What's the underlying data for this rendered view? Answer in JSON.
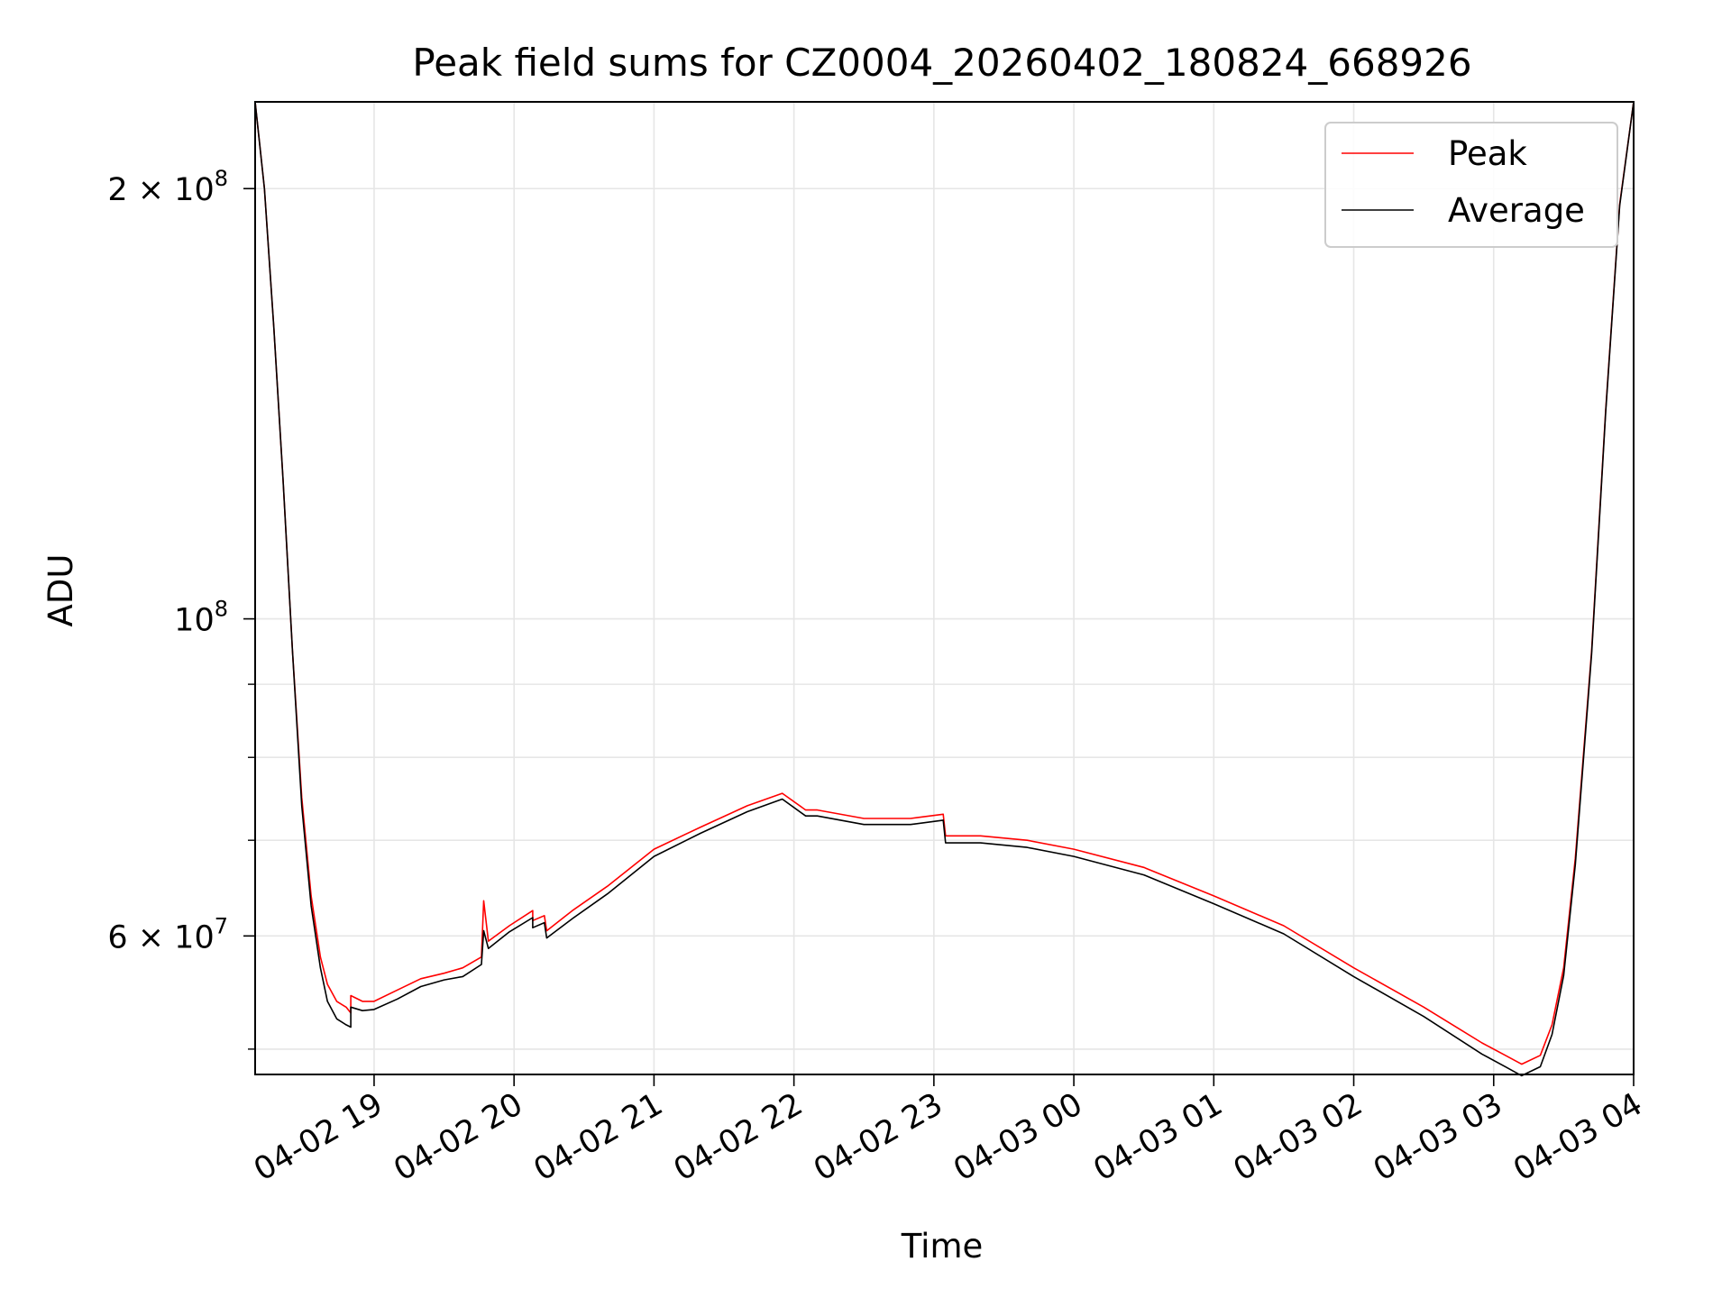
{
  "chart_data": {
    "type": "line",
    "title": "Peak field sums for CZ0004_20260402_180824_668926",
    "xlabel": "Time",
    "ylabel": "ADU",
    "yscale": "log",
    "xlim": [
      "2026-04-02 18:09",
      "2026-04-03 04:00"
    ],
    "ylim": [
      48000000,
      230000000
    ],
    "x_ticks": [
      "04-02 19",
      "04-02 20",
      "04-02 21",
      "04-02 22",
      "04-02 23",
      "04-03 00",
      "04-03 01",
      "04-03 02",
      "04-03 03",
      "04-03 04"
    ],
    "y_ticks": [
      {
        "value": 60000000,
        "label": "6 × 10",
        "exp": "7"
      },
      {
        "value": 100000000,
        "label": "10",
        "exp": "8"
      },
      {
        "value": 200000000,
        "label": "2 × 10",
        "exp": "8"
      }
    ],
    "grid": true,
    "legend_position": "top-right",
    "series": [
      {
        "name": "Peak",
        "color": "#ff0000",
        "x": [
          "2026-04-02 18:09",
          "2026-04-02 18:13",
          "2026-04-02 18:17",
          "2026-04-02 18:21",
          "2026-04-02 18:25",
          "2026-04-02 18:29",
          "2026-04-02 18:33",
          "2026-04-02 18:37",
          "2026-04-02 18:40",
          "2026-04-02 18:44",
          "2026-04-02 18:48",
          "2026-04-02 18:50",
          "2026-04-02 18:50",
          "2026-04-02 18:55",
          "2026-04-02 19:00",
          "2026-04-02 19:10",
          "2026-04-02 19:20",
          "2026-04-02 19:30",
          "2026-04-02 19:38",
          "2026-04-02 19:46",
          "2026-04-02 19:47",
          "2026-04-02 19:49",
          "2026-04-02 19:58",
          "2026-04-02 20:08",
          "2026-04-02 20:08",
          "2026-04-02 20:13",
          "2026-04-02 20:14",
          "2026-04-02 20:25",
          "2026-04-02 20:40",
          "2026-04-02 21:00",
          "2026-04-02 21:20",
          "2026-04-02 21:40",
          "2026-04-02 21:55",
          "2026-04-02 22:05",
          "2026-04-02 22:10",
          "2026-04-02 22:30",
          "2026-04-02 22:50",
          "2026-04-02 23:04",
          "2026-04-02 23:05",
          "2026-04-02 23:20",
          "2026-04-02 23:40",
          "2026-04-03 00:00",
          "2026-04-03 00:30",
          "2026-04-03 01:00",
          "2026-04-03 01:30",
          "2026-04-03 02:00",
          "2026-04-03 02:30",
          "2026-04-03 02:55",
          "2026-04-03 03:05",
          "2026-04-03 03:12",
          "2026-04-03 03:20",
          "2026-04-03 03:25",
          "2026-04-03 03:30",
          "2026-04-03 03:35",
          "2026-04-03 03:42",
          "2026-04-03 03:48",
          "2026-04-03 03:54",
          "2026-04-03 04:00"
        ],
        "values": [
          230000000,
          200000000,
          160000000,
          125000000,
          95000000,
          75000000,
          64000000,
          58000000,
          55500000,
          54000000,
          53500000,
          53000000,
          54500000,
          54000000,
          54000000,
          55000000,
          56000000,
          56500000,
          57000000,
          58000000,
          63500000,
          59500000,
          61000000,
          62500000,
          61500000,
          62000000,
          60500000,
          62500000,
          65000000,
          69000000,
          71500000,
          74000000,
          75500000,
          73500000,
          73500000,
          72500000,
          72500000,
          73000000,
          70500000,
          70500000,
          70000000,
          69000000,
          67000000,
          64000000,
          61000000,
          57000000,
          53500000,
          50500000,
          49500000,
          48800000,
          49500000,
          52000000,
          57000000,
          68000000,
          95000000,
          140000000,
          195000000,
          230000000
        ]
      },
      {
        "name": "Average",
        "color": "#000000",
        "x": [
          "2026-04-02 18:09",
          "2026-04-02 18:13",
          "2026-04-02 18:17",
          "2026-04-02 18:21",
          "2026-04-02 18:25",
          "2026-04-02 18:29",
          "2026-04-02 18:33",
          "2026-04-02 18:37",
          "2026-04-02 18:40",
          "2026-04-02 18:44",
          "2026-04-02 18:48",
          "2026-04-02 18:50",
          "2026-04-02 18:50",
          "2026-04-02 18:55",
          "2026-04-02 19:00",
          "2026-04-02 19:10",
          "2026-04-02 19:20",
          "2026-04-02 19:30",
          "2026-04-02 19:38",
          "2026-04-02 19:46",
          "2026-04-02 19:47",
          "2026-04-02 19:49",
          "2026-04-02 19:58",
          "2026-04-02 20:08",
          "2026-04-02 20:08",
          "2026-04-02 20:13",
          "2026-04-02 20:14",
          "2026-04-02 20:25",
          "2026-04-02 20:40",
          "2026-04-02 21:00",
          "2026-04-02 21:20",
          "2026-04-02 21:40",
          "2026-04-02 21:55",
          "2026-04-02 22:05",
          "2026-04-02 22:10",
          "2026-04-02 22:30",
          "2026-04-02 22:50",
          "2026-04-02 23:04",
          "2026-04-02 23:05",
          "2026-04-02 23:20",
          "2026-04-02 23:40",
          "2026-04-03 00:00",
          "2026-04-03 00:30",
          "2026-04-03 01:00",
          "2026-04-03 01:30",
          "2026-04-03 02:00",
          "2026-04-03 02:30",
          "2026-04-03 02:55",
          "2026-04-03 03:05",
          "2026-04-03 03:12",
          "2026-04-03 03:20",
          "2026-04-03 03:25",
          "2026-04-03 03:30",
          "2026-04-03 03:35",
          "2026-04-03 03:42",
          "2026-04-03 03:48",
          "2026-04-03 03:54",
          "2026-04-03 04:00"
        ],
        "values": [
          230000000,
          200000000,
          160000000,
          125000000,
          95000000,
          74000000,
          63000000,
          57000000,
          54000000,
          52500000,
          52000000,
          51800000,
          53500000,
          53200000,
          53300000,
          54200000,
          55300000,
          55900000,
          56200000,
          57300000,
          60500000,
          58800000,
          60400000,
          61800000,
          60800000,
          61300000,
          59800000,
          61700000,
          64200000,
          68200000,
          70800000,
          73300000,
          74800000,
          72800000,
          72800000,
          71800000,
          71800000,
          72300000,
          69700000,
          69700000,
          69200000,
          68200000,
          66200000,
          63200000,
          60200000,
          56200000,
          52700000,
          49600000,
          48600000,
          47900000,
          48600000,
          51200000,
          56300000,
          67300000,
          94500000,
          139500000,
          194500000,
          230000000
        ]
      }
    ]
  }
}
